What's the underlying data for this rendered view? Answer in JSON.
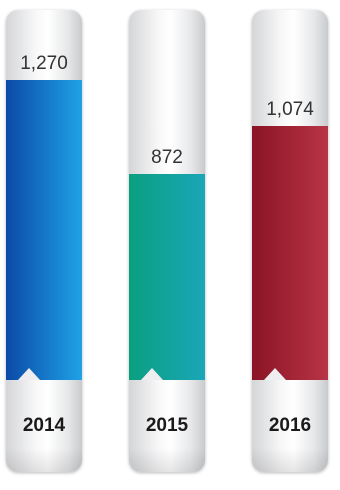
{
  "chart_data": {
    "type": "bar",
    "categories": [
      "2014",
      "2015",
      "2016"
    ],
    "values": [
      1270,
      872,
      1074
    ],
    "value_labels": [
      "1,270",
      "872",
      "1,074"
    ],
    "colors": [
      [
        "#0b4aa8",
        "#1fa2e6"
      ],
      [
        "#0b9f80",
        "#1aa6b8"
      ],
      [
        "#8a1424",
        "#b83446"
      ]
    ],
    "title": "",
    "xlabel": "",
    "ylabel": ""
  }
}
